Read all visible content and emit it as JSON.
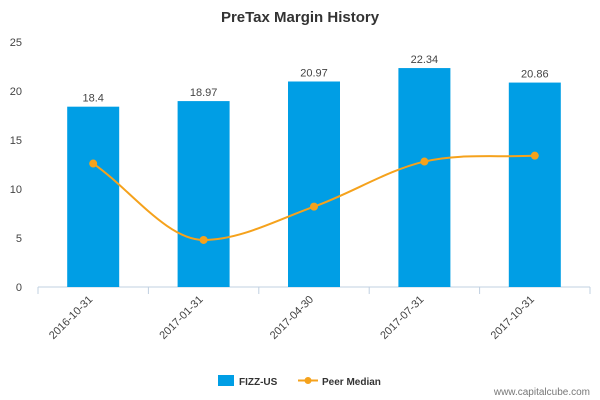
{
  "chart_data": {
    "type": "bar",
    "title": "PreTax Margin History",
    "xlabel": "",
    "ylabel": "",
    "categories": [
      "2016-10-31",
      "2017-01-31",
      "2017-04-30",
      "2017-07-31",
      "2017-10-31"
    ],
    "ylim": [
      0,
      25
    ],
    "yticks": [
      0,
      5,
      10,
      15,
      20,
      25
    ],
    "grid": false,
    "legend_position": "bottom",
    "series": [
      {
        "name": "FIZZ-US",
        "type": "bar",
        "color": "#009ee5",
        "values": [
          18.4,
          18.97,
          20.97,
          22.34,
          20.86
        ],
        "labels": [
          "18.4",
          "18.97",
          "20.97",
          "22.34",
          "20.86"
        ]
      },
      {
        "name": "Peer Median",
        "type": "line",
        "smooth": true,
        "color": "#f5a21c",
        "values": [
          12.6,
          4.8,
          8.2,
          12.8,
          13.4
        ]
      }
    ]
  },
  "watermark": "www.capitalcube.com"
}
